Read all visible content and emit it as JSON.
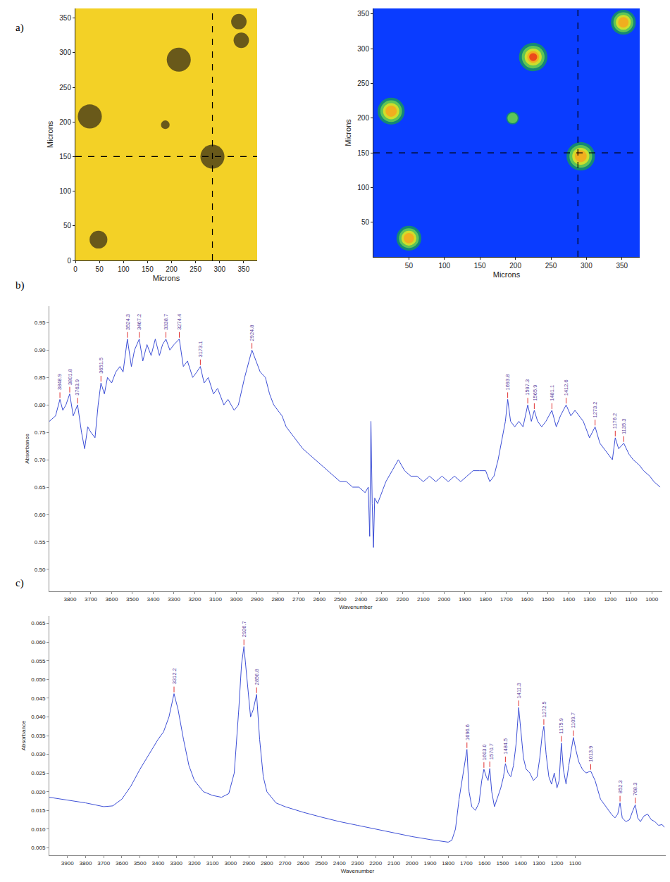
{
  "chart_data": [
    {
      "type": "scatter",
      "panel": "a)",
      "x_label": "Microns",
      "y_label": "Microns",
      "xlim": [
        0,
        378
      ],
      "ylim": [
        0,
        364
      ],
      "xticks": [
        0,
        50,
        100,
        150,
        200,
        250,
        300,
        350
      ],
      "yticks": [
        0,
        50,
        100,
        150,
        200,
        250,
        300,
        350
      ],
      "x": [
        48,
        30,
        215,
        187,
        285,
        340,
        345
      ],
      "y": [
        30,
        208,
        290,
        196,
        150,
        345,
        318
      ],
      "size": [
        37,
        50,
        50,
        18,
        50,
        32,
        32
      ],
      "color": "#2e2616",
      "crosshair": {
        "x": 285,
        "y": 150
      },
      "grid": false
    },
    {
      "type": "heatmap",
      "x_label": "Microns",
      "y_label": "Microns",
      "xlim": [
        0,
        375
      ],
      "ylim": [
        0,
        358
      ],
      "xticks": [
        50,
        100,
        150,
        200,
        250,
        300,
        350
      ],
      "yticks": [
        50,
        100,
        150,
        200,
        250,
        300,
        350
      ],
      "x": [
        50,
        25,
        225,
        196,
        292,
        352
      ],
      "y": [
        27,
        210,
        288,
        200,
        145,
        338
      ],
      "size": [
        35,
        38,
        40,
        18,
        40,
        35
      ],
      "intensity": [
        0.8,
        0.8,
        1.0,
        0.4,
        0.75,
        0.75
      ],
      "crosshair": {
        "x": 288,
        "y": 150
      },
      "grid": false
    },
    {
      "type": "line",
      "panel": "b)",
      "x_label": "Wavenumber",
      "y_label": "Absorbance",
      "xlim": [
        3900,
        950
      ],
      "ylim": [
        0.46,
        0.98
      ],
      "xticks": [
        3800,
        3700,
        3600,
        3500,
        3400,
        3300,
        3200,
        3100,
        3000,
        2900,
        2800,
        2700,
        2600,
        2500,
        2400,
        2300,
        2200,
        2100,
        2000,
        1900,
        1800,
        1700,
        1600,
        1500,
        1400,
        1300,
        1200,
        1100,
        1000
      ],
      "yticks": [
        {
          "value": 0.5,
          "label": "0.50"
        },
        0.55,
        {
          "value": 0.6,
          "label": "0.60"
        },
        0.65,
        {
          "value": 0.7,
          "label": "0.70"
        },
        0.75,
        {
          "value": 0.8,
          "label": "0.80"
        },
        0.85,
        {
          "value": 0.9,
          "label": "0.90"
        },
        0.95
      ],
      "color": "#3d4fd6",
      "x": [
        3900,
        3870,
        3848.9,
        3835,
        3820,
        3801.8,
        3785,
        3763.9,
        3745,
        3730,
        3715,
        3700,
        3680,
        3665,
        3651.5,
        3635,
        3620,
        3600,
        3580,
        3560,
        3545,
        3524.3,
        3505,
        3490,
        3467.2,
        3450,
        3430,
        3410,
        3390,
        3370,
        3355,
        3338.7,
        3320,
        3300,
        3274.4,
        3255,
        3235,
        3210,
        3190,
        3173.1,
        3155,
        3135,
        3110,
        3090,
        3060,
        3040,
        3010,
        2990,
        2960,
        2940,
        2924.8,
        2905,
        2885,
        2860,
        2840,
        2820,
        2800,
        2780,
        2760,
        2740,
        2720,
        2700,
        2680,
        2650,
        2620,
        2590,
        2560,
        2530,
        2500,
        2470,
        2440,
        2410,
        2380,
        2365,
        2358,
        2352,
        2346,
        2340,
        2334,
        2320,
        2300,
        2280,
        2250,
        2220,
        2190,
        2160,
        2130,
        2100,
        2070,
        2040,
        2010,
        1980,
        1950,
        1920,
        1890,
        1860,
        1830,
        1800,
        1780,
        1760,
        1740,
        1720,
        1705,
        1693.8,
        1680,
        1660,
        1640,
        1620,
        1597.3,
        1580,
        1565.9,
        1550,
        1530,
        1510,
        1481.1,
        1460,
        1440,
        1412.6,
        1390,
        1370,
        1350,
        1330,
        1300,
        1273.2,
        1250,
        1230,
        1210,
        1190,
        1176.2,
        1160,
        1135.3,
        1110,
        1090,
        1060,
        1040,
        1010,
        990,
        960
      ],
      "values": [
        0.77,
        0.78,
        0.81,
        0.79,
        0.8,
        0.82,
        0.78,
        0.8,
        0.75,
        0.72,
        0.76,
        0.75,
        0.74,
        0.8,
        0.84,
        0.82,
        0.85,
        0.84,
        0.86,
        0.87,
        0.86,
        0.92,
        0.87,
        0.9,
        0.92,
        0.88,
        0.91,
        0.89,
        0.92,
        0.89,
        0.91,
        0.92,
        0.9,
        0.91,
        0.92,
        0.87,
        0.88,
        0.85,
        0.86,
        0.87,
        0.84,
        0.85,
        0.82,
        0.83,
        0.8,
        0.81,
        0.79,
        0.8,
        0.85,
        0.88,
        0.9,
        0.88,
        0.86,
        0.85,
        0.82,
        0.8,
        0.79,
        0.78,
        0.76,
        0.75,
        0.74,
        0.73,
        0.72,
        0.71,
        0.7,
        0.69,
        0.68,
        0.67,
        0.66,
        0.66,
        0.65,
        0.65,
        0.64,
        0.65,
        0.56,
        0.77,
        0.62,
        0.54,
        0.63,
        0.62,
        0.64,
        0.66,
        0.68,
        0.7,
        0.68,
        0.67,
        0.67,
        0.66,
        0.67,
        0.66,
        0.67,
        0.66,
        0.67,
        0.66,
        0.67,
        0.68,
        0.68,
        0.68,
        0.66,
        0.67,
        0.7,
        0.74,
        0.77,
        0.81,
        0.77,
        0.76,
        0.77,
        0.76,
        0.8,
        0.77,
        0.79,
        0.77,
        0.76,
        0.77,
        0.79,
        0.76,
        0.78,
        0.8,
        0.78,
        0.79,
        0.78,
        0.77,
        0.74,
        0.76,
        0.73,
        0.72,
        0.71,
        0.7,
        0.74,
        0.72,
        0.73,
        0.71,
        0.7,
        0.69,
        0.68,
        0.67,
        0.66,
        0.65
      ],
      "peaks": [
        {
          "value": 3848.9,
          "label": "3848.9",
          "y": 0.81
        },
        {
          "value": 3801.8,
          "label": "3801.8",
          "y": 0.82
        },
        {
          "value": 3763.9,
          "label": "3763.9",
          "y": 0.8
        },
        {
          "value": 3651.5,
          "label": "3651.5",
          "y": 0.84
        },
        {
          "value": 3524.3,
          "label": "3524.3",
          "y": 0.92
        },
        {
          "value": 3467.2,
          "label": "3467.2",
          "y": 0.92
        },
        {
          "value": 3338.7,
          "label": "3338.7",
          "y": 0.92
        },
        {
          "value": 3274.4,
          "label": "3274.4",
          "y": 0.92
        },
        {
          "value": 3173.1,
          "label": "3173.1",
          "y": 0.87
        },
        {
          "value": 2924.8,
          "label": "2924.8",
          "y": 0.9
        },
        {
          "value": 1693.8,
          "label": "1693.8",
          "y": 0.81
        },
        {
          "value": 1597.3,
          "label": "1597.3",
          "y": 0.8
        },
        {
          "value": 1565.9,
          "label": "1565.9",
          "y": 0.79
        },
        {
          "value": 1481.1,
          "label": "1481.1",
          "y": 0.79
        },
        {
          "value": 1412.6,
          "label": "1412.6",
          "y": 0.8
        },
        {
          "value": 1273.2,
          "label": "1273.2",
          "y": 0.76
        },
        {
          "value": 1176.2,
          "label": "1176.2",
          "y": 0.74
        },
        {
          "value": 1135.3,
          "label": "1135.3",
          "y": 0.73
        }
      ],
      "grid": false
    },
    {
      "type": "line",
      "panel": "c)",
      "x_label": "Wavenumber",
      "y_label": "Absorbance",
      "xlim": [
        4000,
        600
      ],
      "ylim": [
        0.003,
        0.067
      ],
      "xticks": [
        3900,
        3800,
        3700,
        3600,
        3500,
        3400,
        3300,
        3200,
        3100,
        3000,
        2900,
        2800,
        2700,
        2600,
        2500,
        2400,
        2300,
        2200,
        2100,
        2000,
        1900,
        1800,
        1700,
        1600,
        1500,
        1400,
        1300,
        1200,
        1100
      ],
      "yticks": [
        0.005,
        {
          "value": 0.01,
          "label": "0.010"
        },
        0.015,
        {
          "value": 0.02,
          "label": "0.020"
        },
        0.025,
        {
          "value": 0.03,
          "label": "0.030"
        },
        0.035,
        {
          "value": 0.04,
          "label": "0.040"
        },
        0.045,
        {
          "value": 0.05,
          "label": "0.050"
        },
        0.055,
        {
          "value": 0.06,
          "label": "0.060"
        },
        0.065
      ],
      "color": "#3d4fd6",
      "x": [
        4000,
        3900,
        3800,
        3700,
        3650,
        3600,
        3550,
        3500,
        3450,
        3400,
        3370,
        3340,
        3312.2,
        3290,
        3260,
        3230,
        3200,
        3150,
        3100,
        3050,
        3010,
        2980,
        2955,
        2940,
        2926.7,
        2910,
        2890,
        2875,
        2856.8,
        2840,
        2820,
        2800,
        2750,
        2700,
        2600,
        2500,
        2400,
        2300,
        2200,
        2100,
        2000,
        1900,
        1850,
        1800,
        1780,
        1760,
        1740,
        1720,
        1705,
        1696.6,
        1685,
        1670,
        1650,
        1630,
        1615,
        1603.0,
        1590,
        1580,
        1570.7,
        1560,
        1545,
        1530,
        1510,
        1495,
        1484.5,
        1470,
        1455,
        1440,
        1425,
        1411.3,
        1400,
        1385,
        1370,
        1350,
        1330,
        1310,
        1295,
        1282,
        1272.5,
        1260,
        1245,
        1230,
        1215,
        1200,
        1188,
        1175.9,
        1165,
        1150,
        1135,
        1120,
        1109.7,
        1095,
        1080,
        1060,
        1040,
        1013.9,
        990,
        960,
        930,
        900,
        880,
        865,
        852.3,
        840,
        820,
        800,
        785,
        768.3,
        755,
        740,
        720,
        700,
        680,
        660,
        640,
        620,
        608
      ],
      "values": [
        0.0185,
        0.0178,
        0.017,
        0.016,
        0.0162,
        0.018,
        0.0215,
        0.026,
        0.03,
        0.034,
        0.036,
        0.04,
        0.0462,
        0.042,
        0.034,
        0.027,
        0.023,
        0.02,
        0.019,
        0.0185,
        0.0195,
        0.025,
        0.042,
        0.054,
        0.0588,
        0.05,
        0.04,
        0.042,
        0.046,
        0.034,
        0.024,
        0.02,
        0.017,
        0.016,
        0.0145,
        0.0132,
        0.012,
        0.011,
        0.01,
        0.009,
        0.008,
        0.0072,
        0.0068,
        0.0065,
        0.007,
        0.01,
        0.018,
        0.024,
        0.028,
        0.0313,
        0.02,
        0.016,
        0.015,
        0.017,
        0.023,
        0.026,
        0.024,
        0.023,
        0.0262,
        0.02,
        0.016,
        0.018,
        0.021,
        0.024,
        0.0275,
        0.025,
        0.024,
        0.027,
        0.033,
        0.0425,
        0.036,
        0.029,
        0.026,
        0.025,
        0.023,
        0.024,
        0.029,
        0.035,
        0.0375,
        0.03,
        0.024,
        0.022,
        0.025,
        0.021,
        0.023,
        0.033,
        0.026,
        0.022,
        0.027,
        0.032,
        0.0345,
        0.031,
        0.028,
        0.026,
        0.025,
        0.0255,
        0.023,
        0.018,
        0.016,
        0.014,
        0.013,
        0.014,
        0.017,
        0.013,
        0.012,
        0.0125,
        0.0145,
        0.0165,
        0.013,
        0.012,
        0.0135,
        0.014,
        0.0125,
        0.012,
        0.011,
        0.0112,
        0.0105
      ],
      "peaks": [
        {
          "value": 3312.2,
          "label": "3312.2",
          "y": 0.0462
        },
        {
          "value": 2926.7,
          "label": "2926.7",
          "y": 0.0588
        },
        {
          "value": 2856.8,
          "label": "2856.8",
          "y": 0.046
        },
        {
          "value": 1696.6,
          "label": "1696.6",
          "y": 0.0313
        },
        {
          "value": 1603.0,
          "label": "1603.0",
          "y": 0.026
        },
        {
          "value": 1570.7,
          "label": "1570.7",
          "y": 0.0262
        },
        {
          "value": 1484.5,
          "label": "1484.5",
          "y": 0.0275
        },
        {
          "value": 1411.3,
          "label": "1411.3",
          "y": 0.0425
        },
        {
          "value": 1272.5,
          "label": "1272.5",
          "y": 0.0375
        },
        {
          "value": 1175.9,
          "label": "1175.9",
          "y": 0.033
        },
        {
          "value": 1109.7,
          "label": "1109.7",
          "y": 0.0345
        },
        {
          "value": 1013.9,
          "label": "1013.9",
          "y": 0.0255
        },
        {
          "value": 852.3,
          "label": "852.3",
          "y": 0.017
        },
        {
          "value": 768.3,
          "label": "768.3",
          "y": 0.0165
        }
      ],
      "grid": false
    }
  ]
}
